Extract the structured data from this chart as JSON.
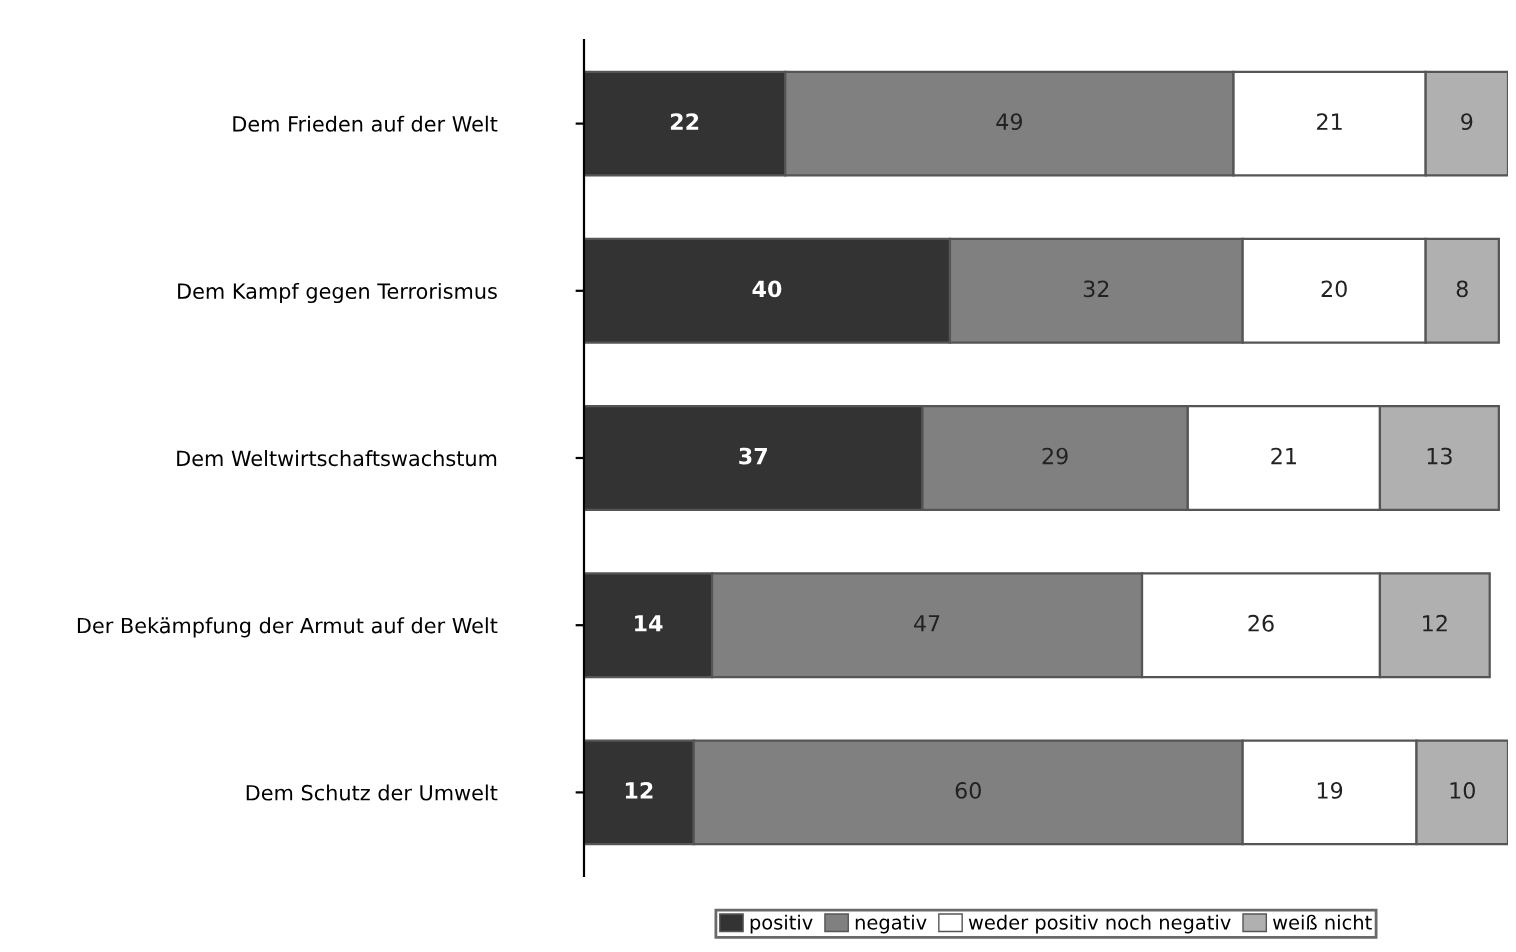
{
  "chart_data": {
    "type": "bar",
    "orientation": "horizontal",
    "stacked": true,
    "data_labels": true,
    "legend": "bottom",
    "grid": false,
    "categories": [
      "Dem Frieden auf der Welt",
      "Dem Kampf gegen Terrorismus",
      "Dem Weltwirtschaftswachstum",
      "Der Bekämpfung der Armut auf der Welt",
      "Dem Schutz der Umwelt"
    ],
    "series": [
      {
        "name": "positiv",
        "color": "#333333",
        "values": [
          22,
          40,
          37,
          14,
          12
        ]
      },
      {
        "name": "negativ",
        "color": "#808080",
        "values": [
          49,
          32,
          29,
          47,
          60
        ]
      },
      {
        "name": "weder positiv noch negativ",
        "color": "#ffffff",
        "values": [
          21,
          20,
          21,
          26,
          19
        ]
      },
      {
        "name": "weiß nicht",
        "color": "#b0b0b0",
        "values": [
          9,
          8,
          13,
          12,
          10
        ]
      }
    ]
  }
}
